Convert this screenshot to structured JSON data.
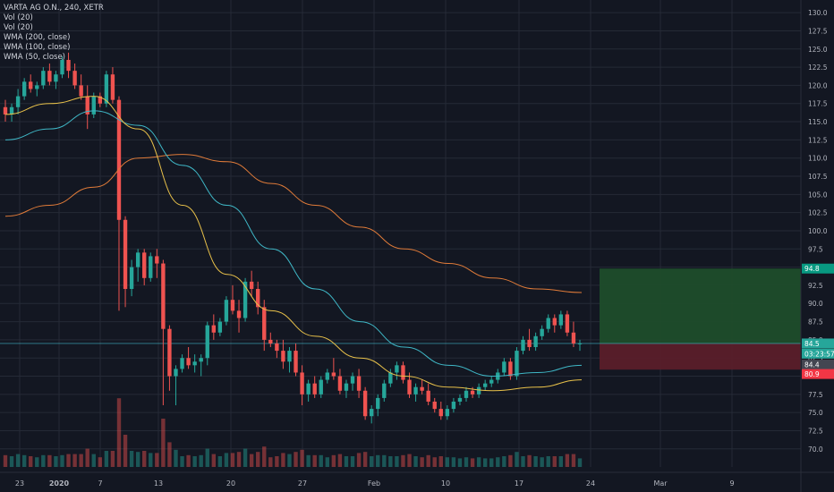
{
  "legend": {
    "title": "VARTA AG O.N., 240, XETR",
    "studies": [
      "Vol (20)",
      "Vol (20)",
      "WMA (200, close)",
      "WMA (100, close)",
      "WMA (50, close)"
    ]
  },
  "price_axis": {
    "ticks": [
      "130.0",
      "127.5",
      "125.0",
      "122.5",
      "120.0",
      "117.5",
      "115.0",
      "112.5",
      "110.0",
      "107.5",
      "105.0",
      "102.5",
      "100.0",
      "97.5",
      "95.0",
      "92.5",
      "90.0",
      "87.5",
      "85.0",
      "82.5",
      "80.0",
      "77.5",
      "75.0",
      "72.5",
      "70.0"
    ],
    "tags": [
      {
        "label": "94.8",
        "value": 94.8,
        "color": "#089981"
      },
      {
        "label": "84.5",
        "value": 84.5,
        "color": "#26a69a"
      },
      {
        "label": "03:23:57",
        "value": 83.1,
        "color": "#26a69a"
      },
      {
        "label": "84.4",
        "value": 81.6,
        "color": "#434651"
      },
      {
        "label": "80.9",
        "value": 80.3,
        "color": "#f23645"
      }
    ]
  },
  "time_axis": {
    "labels": [
      {
        "text": "23",
        "bold": false
      },
      {
        "text": "2020",
        "bold": true
      },
      {
        "text": "7",
        "bold": false
      },
      {
        "text": "13",
        "bold": false
      },
      {
        "text": "20",
        "bold": false
      },
      {
        "text": "27",
        "bold": false
      },
      {
        "text": "Feb",
        "bold": false
      },
      {
        "text": "10",
        "bold": false
      },
      {
        "text": "17",
        "bold": false
      },
      {
        "text": "24",
        "bold": false
      },
      {
        "text": "Mar",
        "bold": false
      },
      {
        "text": "9",
        "bold": false
      }
    ]
  },
  "position": {
    "target": 94.8,
    "entry": 84.5,
    "stop": 80.9
  },
  "colors": {
    "up": "#26a69a",
    "down": "#ef5350",
    "wma200": "#e07b39",
    "wma100": "#3fb7c6",
    "wma50": "#e8c14a",
    "bg": "#131722",
    "grid": "#252a36",
    "axis_text": "#b2b5be"
  },
  "chart_data": {
    "type": "candlestick",
    "title": "VARTA AG O.N., 240, XETR",
    "ylim": [
      68.5,
      131.0
    ],
    "x_labels": [
      "23",
      "2020",
      "7",
      "13",
      "20",
      "27",
      "Feb",
      "10",
      "17",
      "24",
      "Mar",
      "9"
    ],
    "candles": [
      [
        117.0,
        118.0,
        115.0,
        116.0
      ],
      [
        116.0,
        117.5,
        115.0,
        117.0
      ],
      [
        117.0,
        119.5,
        116.0,
        118.5
      ],
      [
        118.5,
        121.0,
        118.0,
        120.5
      ],
      [
        120.5,
        121.5,
        119.0,
        119.5
      ],
      [
        119.5,
        120.5,
        118.5,
        120.0
      ],
      [
        120.0,
        122.5,
        119.5,
        122.0
      ],
      [
        122.0,
        123.0,
        120.0,
        120.5
      ],
      [
        120.5,
        122.0,
        119.5,
        121.5
      ],
      [
        121.5,
        124.0,
        121.0,
        123.5
      ],
      [
        123.5,
        124.5,
        121.0,
        122.0
      ],
      [
        122.0,
        123.0,
        119.5,
        120.0
      ],
      [
        120.0,
        121.5,
        118.0,
        118.5
      ],
      [
        118.5,
        120.0,
        114.0,
        116.0
      ],
      [
        116.0,
        119.0,
        115.5,
        118.5
      ],
      [
        118.5,
        119.0,
        117.0,
        117.5
      ],
      [
        117.5,
        122.0,
        117.0,
        121.5
      ],
      [
        121.5,
        122.5,
        117.5,
        118.0
      ],
      [
        118.0,
        118.5,
        89.0,
        101.5
      ],
      [
        101.5,
        102.0,
        89.5,
        92.0
      ],
      [
        92.0,
        96.0,
        91.0,
        95.0
      ],
      [
        95.0,
        97.5,
        93.0,
        97.0
      ],
      [
        97.0,
        97.5,
        92.5,
        93.5
      ],
      [
        93.5,
        97.0,
        93.0,
        96.5
      ],
      [
        96.5,
        97.5,
        93.5,
        95.5
      ],
      [
        95.5,
        96.0,
        76.0,
        86.5
      ],
      [
        86.5,
        87.0,
        78.0,
        80.0
      ],
      [
        80.0,
        81.5,
        76.0,
        81.0
      ],
      [
        81.0,
        83.0,
        80.5,
        82.5
      ],
      [
        82.5,
        84.0,
        81.0,
        81.5
      ],
      [
        81.5,
        83.0,
        80.5,
        82.0
      ],
      [
        82.0,
        83.0,
        80.0,
        82.5
      ],
      [
        82.5,
        87.5,
        81.5,
        87.0
      ],
      [
        87.0,
        88.5,
        85.0,
        86.0
      ],
      [
        86.0,
        88.0,
        85.5,
        87.5
      ],
      [
        87.5,
        91.0,
        87.0,
        90.5
      ],
      [
        90.5,
        92.5,
        88.5,
        89.0
      ],
      [
        89.0,
        90.5,
        86.0,
        88.0
      ],
      [
        88.0,
        93.5,
        87.5,
        93.0
      ],
      [
        93.0,
        94.5,
        91.0,
        92.0
      ],
      [
        92.0,
        93.0,
        88.5,
        89.5
      ],
      [
        89.5,
        90.5,
        83.5,
        85.0
      ],
      [
        85.0,
        86.0,
        84.0,
        84.5
      ],
      [
        84.5,
        85.0,
        82.5,
        83.5
      ],
      [
        83.5,
        85.0,
        81.0,
        82.0
      ],
      [
        82.0,
        84.0,
        80.5,
        83.5
      ],
      [
        83.5,
        84.5,
        80.0,
        80.5
      ],
      [
        80.5,
        81.5,
        76.0,
        77.5
      ],
      [
        77.5,
        79.5,
        76.5,
        79.0
      ],
      [
        79.0,
        80.0,
        77.0,
        77.5
      ],
      [
        77.5,
        80.0,
        77.0,
        79.5
      ],
      [
        79.5,
        81.0,
        79.0,
        80.5
      ],
      [
        80.5,
        82.5,
        79.5,
        80.0
      ],
      [
        80.0,
        81.0,
        77.5,
        78.0
      ],
      [
        78.0,
        79.5,
        77.0,
        79.0
      ],
      [
        79.0,
        80.5,
        78.0,
        80.0
      ],
      [
        80.0,
        81.0,
        77.0,
        78.0
      ],
      [
        78.0,
        78.5,
        74.0,
        74.5
      ],
      [
        74.5,
        76.0,
        73.5,
        75.5
      ],
      [
        75.5,
        77.5,
        74.5,
        77.0
      ],
      [
        77.0,
        79.5,
        76.5,
        79.0
      ],
      [
        79.0,
        81.0,
        78.5,
        80.5
      ],
      [
        80.5,
        82.0,
        79.5,
        81.5
      ],
      [
        81.5,
        82.0,
        79.0,
        79.5
      ],
      [
        79.5,
        80.5,
        77.0,
        77.5
      ],
      [
        77.5,
        79.0,
        76.5,
        78.5
      ],
      [
        78.5,
        79.5,
        77.5,
        78.0
      ],
      [
        78.0,
        79.0,
        76.0,
        76.5
      ],
      [
        76.5,
        77.0,
        75.0,
        75.5
      ],
      [
        75.5,
        76.5,
        74.0,
        74.5
      ],
      [
        74.5,
        76.0,
        74.0,
        75.5
      ],
      [
        75.5,
        77.0,
        75.0,
        76.5
      ],
      [
        76.5,
        77.5,
        76.0,
        77.0
      ],
      [
        77.0,
        78.5,
        76.5,
        78.0
      ],
      [
        78.0,
        78.5,
        77.0,
        77.5
      ],
      [
        77.5,
        79.0,
        77.0,
        78.5
      ],
      [
        78.5,
        79.5,
        78.0,
        79.0
      ],
      [
        79.0,
        80.0,
        78.5,
        79.5
      ],
      [
        79.5,
        81.0,
        79.0,
        80.5
      ],
      [
        80.5,
        82.5,
        80.0,
        82.0
      ],
      [
        82.0,
        82.5,
        79.5,
        80.0
      ],
      [
        80.0,
        84.0,
        79.5,
        83.5
      ],
      [
        83.5,
        85.5,
        83.0,
        85.0
      ],
      [
        85.0,
        86.5,
        83.5,
        84.0
      ],
      [
        84.0,
        86.0,
        83.5,
        85.5
      ],
      [
        85.5,
        87.0,
        85.0,
        86.5
      ],
      [
        86.5,
        88.5,
        86.0,
        88.0
      ],
      [
        88.0,
        88.5,
        86.0,
        87.0
      ],
      [
        87.0,
        89.0,
        86.5,
        88.5
      ],
      [
        88.5,
        89.0,
        85.5,
        86.0
      ],
      [
        86.0,
        87.5,
        84.0,
        84.5
      ],
      [
        84.5,
        85.0,
        83.5,
        84.5
      ]
    ],
    "volume_note": "volume bars (Vol 20) shown at bottom, unlabeled scale",
    "series": [
      {
        "name": "WMA (200, close)",
        "values": [
          102.0,
          103.5,
          106.0,
          110.0,
          110.5,
          109.5,
          106.5,
          103.5,
          100.5,
          97.5,
          95.5,
          93.5,
          92.0,
          91.5
        ]
      },
      {
        "name": "WMA (100, close)",
        "values": [
          112.5,
          114.0,
          116.5,
          114.5,
          109.0,
          103.5,
          97.5,
          92.0,
          87.5,
          84.0,
          81.5,
          80.0,
          80.5,
          81.5
        ]
      },
      {
        "name": "WMA (50, close)",
        "values": [
          116.0,
          117.5,
          118.5,
          114.0,
          103.5,
          94.0,
          89.0,
          85.5,
          82.5,
          80.0,
          78.5,
          78.0,
          78.5,
          79.5
        ]
      }
    ]
  }
}
